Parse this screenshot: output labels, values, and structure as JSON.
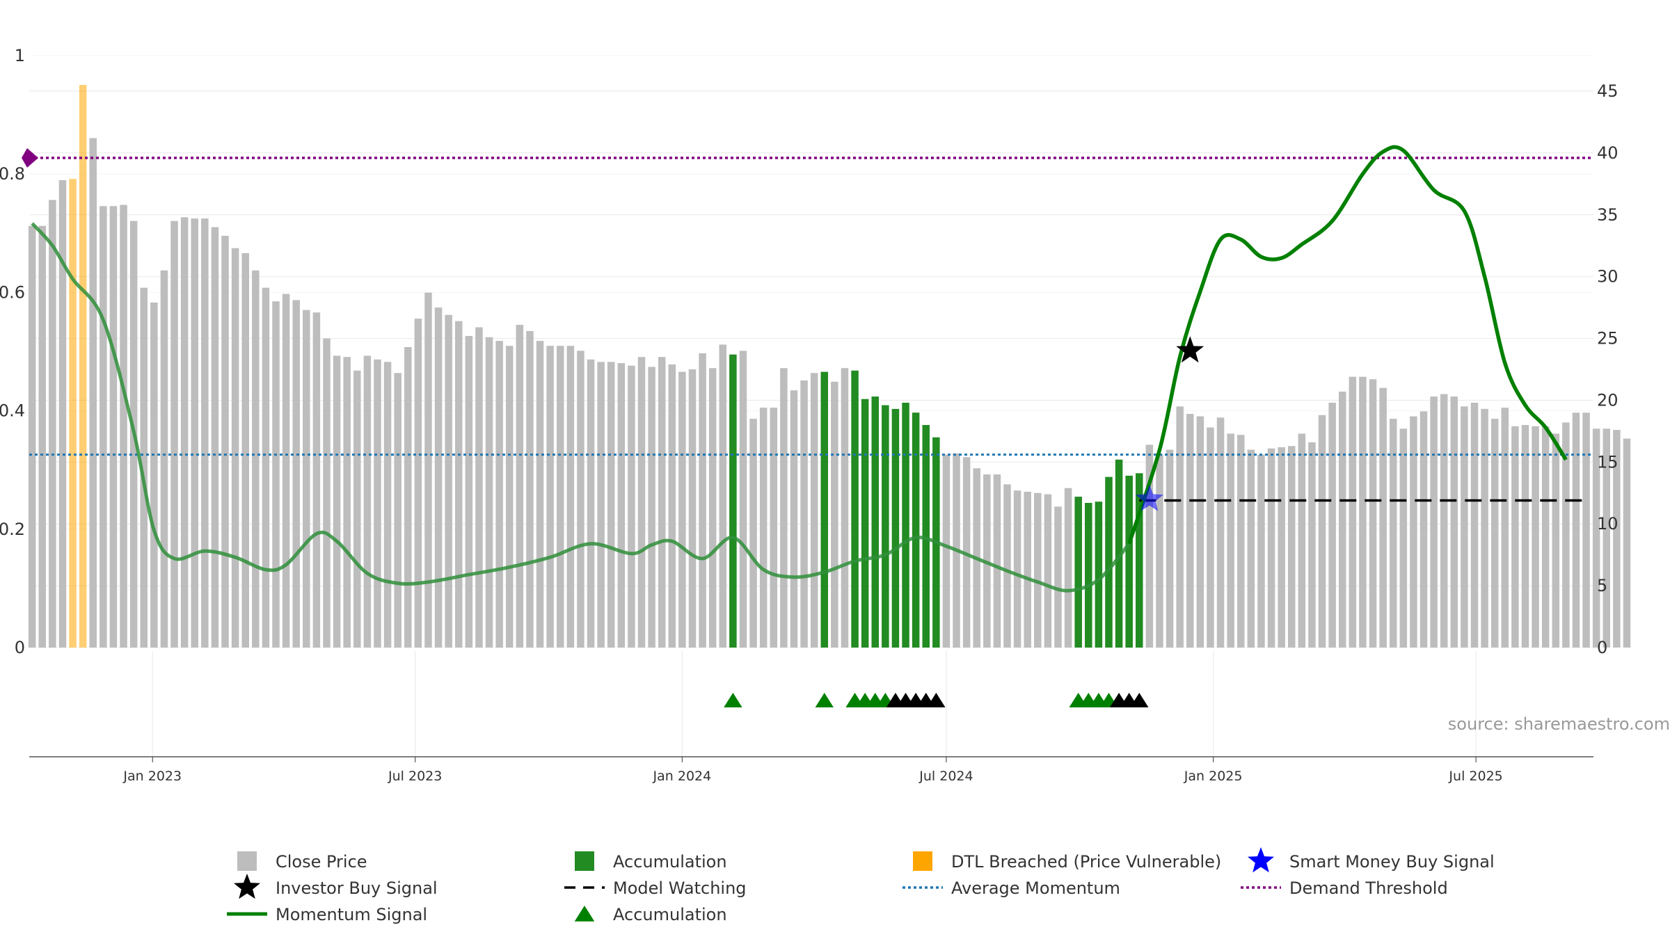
{
  "chart_data": {
    "type": "bar",
    "title": "",
    "xlabel": "",
    "ylabel": "",
    "source": "source: sharemaestro.com",
    "x_range": [
      "2022-10-08",
      "2025-09-20"
    ],
    "left_axis": {
      "ylim": [
        0,
        1
      ],
      "ticks": [
        "0",
        "0.2",
        "0.4",
        "0.6",
        "0.8",
        "1"
      ]
    },
    "right_axis": {
      "ylim": [
        0,
        45
      ],
      "ticks": [
        "0",
        "5",
        "10",
        "15",
        "20",
        "25",
        "30",
        "35",
        "40",
        "45"
      ]
    },
    "x_ticks": [
      {
        "label": "Jan 2023",
        "date": "2023-01-01"
      },
      {
        "label": "Jul 2023",
        "date": "2023-07-01"
      },
      {
        "label": "Jan 2024",
        "date": "2024-01-01"
      },
      {
        "label": "Jul 2024",
        "date": "2024-07-01"
      },
      {
        "label": "Jan 2025",
        "date": "2025-01-01"
      },
      {
        "label": "Jul 2025",
        "date": "2025-07-01"
      }
    ],
    "grid": true,
    "legend_position": "bottom",
    "colors": {
      "close_price": "#bdbdbd",
      "accumulation": "#228B22",
      "dtl_breached": "#FFA500",
      "momentum": "#008000",
      "average_momentum": "#1f77b4",
      "demand_threshold": "#800080",
      "smart_money": "#0000FF",
      "investor_buy": "#000000"
    },
    "close_price": {
      "start_date": "2022-10-10",
      "interval_days": 7,
      "values": [
        34.1,
        34.1,
        36.2,
        37.8,
        37.9,
        45.5,
        41.2,
        35.7,
        35.7,
        35.8,
        34.5,
        29.1,
        27.9,
        30.5,
        34.5,
        34.8,
        34.7,
        34.7,
        34.0,
        33.3,
        32.3,
        31.9,
        30.5,
        29.1,
        28.0,
        28.6,
        28.1,
        27.3,
        27.1,
        25.0,
        23.6,
        23.5,
        22.4,
        23.6,
        23.3,
        23.1,
        22.2,
        24.3,
        26.6,
        28.7,
        27.5,
        26.9,
        26.4,
        25.2,
        25.9,
        25.1,
        24.8,
        24.4,
        26.1,
        25.6,
        24.8,
        24.4,
        24.4,
        24.4,
        24.0,
        23.3,
        23.1,
        23.1,
        23.0,
        22.8,
        23.5,
        22.7,
        23.5,
        22.9,
        22.3,
        22.5,
        23.8,
        22.6,
        24.5,
        23.7,
        24.0,
        18.5,
        19.4,
        19.4,
        22.6,
        20.8,
        21.6,
        22.2,
        22.3,
        21.5,
        22.6,
        22.4,
        20.1,
        20.3,
        19.6,
        19.3,
        19.8,
        19.0,
        18.0,
        17.0,
        15.6,
        15.7,
        15.4,
        14.5,
        14.0,
        14.0,
        13.2,
        12.7,
        12.6,
        12.5,
        12.4,
        11.4,
        12.9,
        12.2,
        11.7,
        11.8,
        13.8,
        15.2,
        13.9,
        14.1,
        16.4,
        15.6,
        16.0,
        19.5,
        18.9,
        18.7,
        17.8,
        18.6,
        17.3,
        17.2,
        16.0,
        15.6,
        16.1,
        16.2,
        16.3,
        17.3,
        16.6,
        18.8,
        19.8,
        20.7,
        21.9,
        21.9,
        21.7,
        21.0,
        18.5,
        17.7,
        18.7,
        19.1,
        20.3,
        20.5,
        20.3,
        19.5,
        19.8,
        19.3,
        18.5,
        19.4,
        17.9,
        18.0,
        17.9,
        17.9,
        17.3,
        18.2,
        19.0,
        19.0,
        17.7,
        17.7,
        17.6,
        16.9
      ]
    },
    "accumulation_bars": [
      "2024-02-05",
      "2024-04-08",
      "2024-04-29",
      "2024-05-06",
      "2024-05-13",
      "2024-05-20",
      "2024-05-27",
      "2024-06-03",
      "2024-06-10",
      "2024-06-17",
      "2024-06-24",
      "2024-09-30",
      "2024-10-07",
      "2024-10-14",
      "2024-10-21",
      "2024-10-28",
      "2024-11-04",
      "2024-11-11"
    ],
    "dtl_breached_bars": [
      "2022-11-07",
      "2022-11-14"
    ],
    "momentum": {
      "points": [
        [
          "2022-10-10",
          34.3
        ],
        [
          "2022-10-24",
          32.5
        ],
        [
          "2022-11-07",
          29.8
        ],
        [
          "2022-11-28",
          26.5
        ],
        [
          "2022-12-19",
          17.5
        ],
        [
          "2023-01-02",
          9.5
        ],
        [
          "2023-01-16",
          7.2
        ],
        [
          "2023-02-06",
          7.8
        ],
        [
          "2023-02-27",
          7.3
        ],
        [
          "2023-03-20",
          6.3
        ],
        [
          "2023-04-03",
          6.7
        ],
        [
          "2023-04-24",
          9.2
        ],
        [
          "2023-05-08",
          8.6
        ],
        [
          "2023-05-29",
          6.0
        ],
        [
          "2023-06-19",
          5.2
        ],
        [
          "2023-07-10",
          5.3
        ],
        [
          "2023-08-07",
          5.9
        ],
        [
          "2023-09-04",
          6.5
        ],
        [
          "2023-10-02",
          7.3
        ],
        [
          "2023-10-30",
          8.4
        ],
        [
          "2023-11-27",
          7.6
        ],
        [
          "2023-12-11",
          8.3
        ],
        [
          "2023-12-25",
          8.6
        ],
        [
          "2024-01-15",
          7.2
        ],
        [
          "2024-02-05",
          8.9
        ],
        [
          "2024-02-26",
          6.3
        ],
        [
          "2024-03-18",
          5.7
        ],
        [
          "2024-04-08",
          6.1
        ],
        [
          "2024-04-29",
          7.0
        ],
        [
          "2024-05-20",
          7.5
        ],
        [
          "2024-06-10",
          8.9
        ],
        [
          "2024-07-01",
          8.2
        ],
        [
          "2024-07-22",
          7.2
        ],
        [
          "2024-08-12",
          6.2
        ],
        [
          "2024-09-02",
          5.3
        ],
        [
          "2024-09-23",
          4.6
        ],
        [
          "2024-10-14",
          5.5
        ],
        [
          "2024-11-04",
          8.4
        ],
        [
          "2024-11-25",
          16.0
        ],
        [
          "2024-12-09",
          23.5
        ],
        [
          "2024-12-23",
          28.8
        ],
        [
          "2025-01-06",
          33.0
        ],
        [
          "2025-01-20",
          33.0
        ],
        [
          "2025-02-03",
          31.6
        ],
        [
          "2025-02-17",
          31.5
        ],
        [
          "2025-03-03",
          32.6
        ],
        [
          "2025-03-24",
          34.5
        ],
        [
          "2025-04-14",
          38.3
        ],
        [
          "2025-04-28",
          40.1
        ],
        [
          "2025-05-12",
          40.2
        ],
        [
          "2025-06-02",
          37.0
        ],
        [
          "2025-06-23",
          35.3
        ],
        [
          "2025-07-07",
          30.0
        ],
        [
          "2025-07-21",
          23.0
        ],
        [
          "2025-08-04",
          19.6
        ],
        [
          "2025-08-18",
          17.8
        ],
        [
          "2025-09-01",
          15.2
        ]
      ]
    },
    "average_momentum": 15.6,
    "demand_threshold": 39.6,
    "model_watching": {
      "start": "2024-11-11",
      "end": "2025-09-15",
      "value": 11.9
    },
    "smart_money_buy_signal": {
      "date": "2024-11-18",
      "value": 12.0
    },
    "investor_buy_signal": {
      "date": "2024-12-16",
      "value": 24.0
    },
    "signal_markers": {
      "green": [
        "2024-02-05",
        "2024-04-08",
        "2024-04-29",
        "2024-05-06",
        "2024-05-13",
        "2024-05-20",
        "2024-09-30",
        "2024-10-07",
        "2024-10-14",
        "2024-10-21"
      ],
      "black": [
        "2024-05-27",
        "2024-06-03",
        "2024-06-10",
        "2024-06-17",
        "2024-06-24",
        "2024-10-28",
        "2024-11-04",
        "2024-11-11"
      ]
    },
    "legend": [
      {
        "key": "close_price",
        "label": "Close Price",
        "symbol": "square",
        "color": "#bdbdbd"
      },
      {
        "key": "accumulation",
        "label": "Accumulation",
        "symbol": "square",
        "color": "#228B22"
      },
      {
        "key": "dtl",
        "label": "DTL Breached (Price Vulnerable)",
        "symbol": "square",
        "color": "#FFA500"
      },
      {
        "key": "smart_money",
        "label": "Smart Money Buy Signal",
        "symbol": "star",
        "color": "#0000FF"
      },
      {
        "key": "investor_buy",
        "label": "Investor Buy Signal",
        "symbol": "star",
        "color": "#000000"
      },
      {
        "key": "model_watching",
        "label": "Model Watching",
        "symbol": "dash",
        "color": "#000000"
      },
      {
        "key": "average_momentum",
        "label": "Average Momentum",
        "symbol": "dot",
        "color": "#1f77b4"
      },
      {
        "key": "demand_threshold",
        "label": "Demand Threshold",
        "symbol": "dot",
        "color": "#800080"
      },
      {
        "key": "momentum",
        "label": "Momentum Signal",
        "symbol": "line",
        "color": "#008000"
      },
      {
        "key": "accumulation_marker",
        "label": "Accumulation",
        "symbol": "triangle",
        "color": "#008000"
      }
    ]
  }
}
